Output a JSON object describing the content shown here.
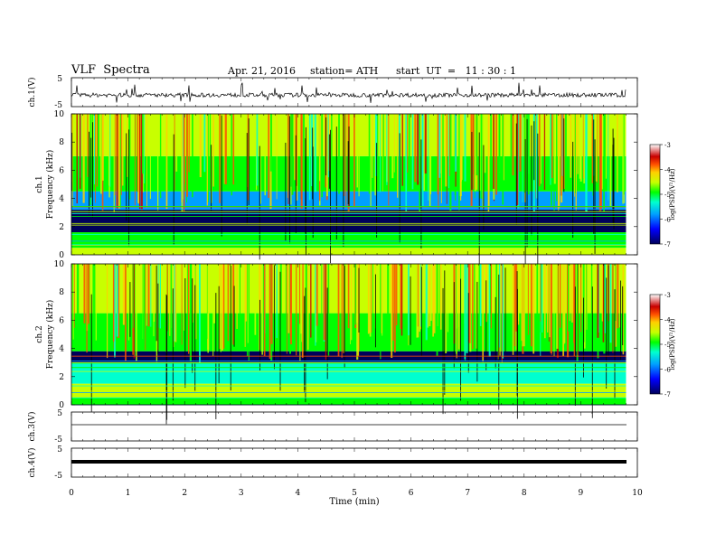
{
  "header": {
    "title": "VLF  Spectra",
    "date": "Apr. 21, 2016",
    "station": "station= ATH",
    "start": "start  UT  =   11 : 30 : 1"
  },
  "chart_data": [
    {
      "type": "line",
      "panel": "ch1-waveform",
      "ylabel": "ch.1(V)",
      "ylim": [
        -5,
        5
      ],
      "yticks": [
        "5",
        "-5"
      ],
      "xlim": [
        0,
        10
      ],
      "approx_level": -1,
      "note_series": "noisy waveform centered near -1 V with spikes"
    },
    {
      "type": "heatmap",
      "panel": "ch1-spectrogram",
      "ylabel_1": "ch.1",
      "ylabel_2": "Frequency  (kHz)",
      "ylim": [
        0,
        10
      ],
      "yticks": [
        "0",
        "2",
        "4",
        "6",
        "8",
        "10"
      ],
      "xlim": [
        0,
        9.8
      ],
      "colorbar": {
        "label": "log(PSD)(V²/Hz)",
        "ticks": [
          "-3",
          "-4",
          "-5",
          "-6",
          "-7"
        ],
        "range": [
          -7,
          -3
        ]
      },
      "bands": [
        {
          "f_low": 0,
          "f_high": 0.5,
          "level": -4.5
        },
        {
          "f_low": 0.5,
          "f_high": 1.6,
          "level": -5.2
        },
        {
          "f_low": 1.6,
          "f_high": 3.2,
          "level": -6.6
        },
        {
          "f_low": 3.2,
          "f_high": 4.5,
          "level": -6.0
        },
        {
          "f_low": 4.5,
          "f_high": 7.0,
          "level": -5.0
        },
        {
          "f_low": 7.0,
          "f_high": 10.0,
          "level": -4.6
        }
      ]
    },
    {
      "type": "heatmap",
      "panel": "ch2-spectrogram",
      "ylabel_1": "ch.2",
      "ylabel_2": "Frequency  (kHz)",
      "ylim": [
        0,
        10
      ],
      "yticks": [
        "0",
        "2",
        "4",
        "6",
        "8",
        "10"
      ],
      "xlim": [
        0,
        9.8
      ],
      "colorbar": {
        "label": "log(PSD)(V²/Hz)",
        "ticks": [
          "-3",
          "-4",
          "-5",
          "-6",
          "-7"
        ],
        "range": [
          -7,
          -3
        ]
      },
      "bands": [
        {
          "f_low": 0,
          "f_high": 0.5,
          "level": -4.8
        },
        {
          "f_low": 0.5,
          "f_high": 1.5,
          "level": -4.4
        },
        {
          "f_low": 1.5,
          "f_high": 3.0,
          "level": -5.6
        },
        {
          "f_low": 3.0,
          "f_high": 3.8,
          "level": -6.6
        },
        {
          "f_low": 3.8,
          "f_high": 6.5,
          "level": -5.0
        },
        {
          "f_low": 6.5,
          "f_high": 10.0,
          "level": -4.6
        }
      ]
    },
    {
      "type": "line",
      "panel": "ch3-waveform",
      "ylabel": "ch.3(V)",
      "ylim": [
        -5,
        5
      ],
      "yticks": [
        "5",
        "-5"
      ],
      "approx_level": 0
    },
    {
      "type": "line",
      "panel": "ch4-waveform",
      "ylabel": "ch.4(V)",
      "ylim": [
        -5,
        5
      ],
      "yticks": [
        "5",
        "-5"
      ],
      "approx_level": 0
    }
  ],
  "x_axis": {
    "label": "Time  (min)",
    "ticks": [
      "0",
      "1",
      "2",
      "3",
      "4",
      "5",
      "6",
      "7",
      "8",
      "9",
      "10"
    ],
    "range": [
      0,
      10
    ]
  },
  "colors": {
    "colormap": [
      "#00005a",
      "#0000ff",
      "#00a0ff",
      "#00ffd0",
      "#00ff00",
      "#c8ff00",
      "#ffd000",
      "#ff5000",
      "#c80000",
      "#ffffff"
    ]
  }
}
